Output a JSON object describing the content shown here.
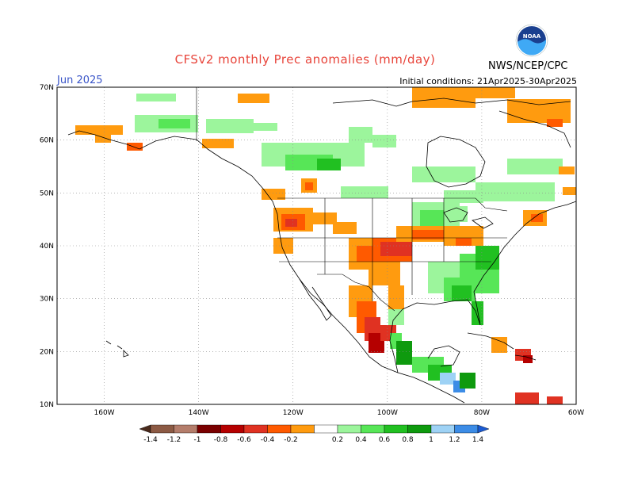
{
  "header": {
    "title": "CFSv2 monthly Prec anomalies (mm/day)",
    "month": "Jun 2025",
    "initial_conditions": "Initial conditions: 21Apr2025-30Apr2025",
    "agency": "NWS/NCEP/CPC",
    "logo_text": "NOAA",
    "logo_colors": {
      "outer": "#ffffff",
      "sky": "#1a3f8f",
      "bird": "#ffffff",
      "water": "#3fa9f5"
    }
  },
  "map": {
    "lat_labels": [
      "70N",
      "60N",
      "50N",
      "40N",
      "30N",
      "20N",
      "10N"
    ],
    "lon_labels": [
      "160W",
      "140W",
      "120W",
      "100W",
      "80W",
      "60W"
    ],
    "lat_range": [
      10,
      70
    ],
    "lon_range": [
      -170,
      -60
    ]
  },
  "colorbar": {
    "labels": [
      "-1.4",
      "-1.2",
      "-1",
      "-0.8",
      "-0.6",
      "-0.4",
      "-0.2",
      "0.2",
      "0.4",
      "0.6",
      "0.8",
      "1",
      "1.2",
      "1.4"
    ],
    "colors": [
      "#4a2a1c",
      "#8c5a44",
      "#b47d6b",
      "#7a0000",
      "#b50000",
      "#e03222",
      "#ff5a00",
      "#ff9b0f",
      "#ffffff",
      "#9cf59c",
      "#57e657",
      "#21c021",
      "#0e9a0e",
      "#9ed2f5",
      "#3c8ce6",
      "#1a5ad2"
    ]
  }
}
